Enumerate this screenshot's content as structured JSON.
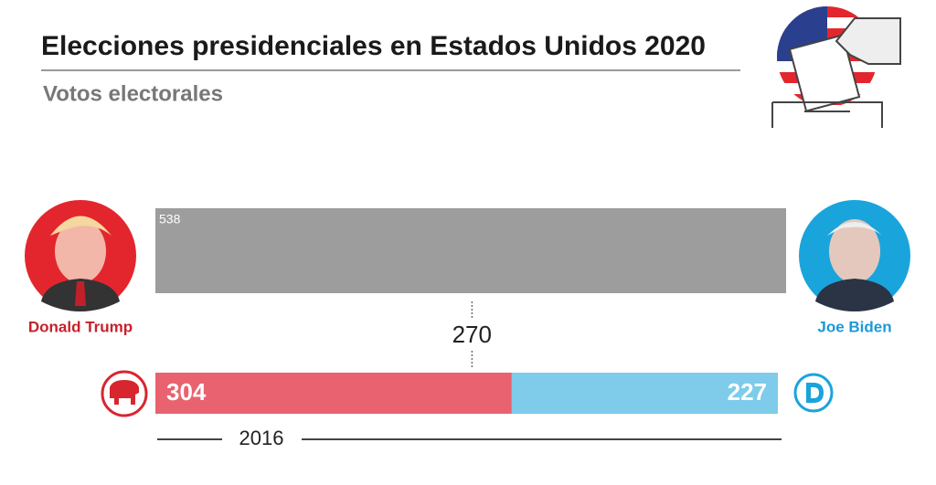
{
  "chart_data": {
    "type": "bar",
    "title": "Elecciones presidenciales en Estados Unidos 2020",
    "subtitle": "Votos electorales",
    "total": 538,
    "threshold": 270,
    "xlim": [
      0,
      538
    ],
    "categories": [
      "2016"
    ],
    "series": [
      {
        "name": "Donald Trump",
        "color": "#e8636f",
        "values": [
          304
        ]
      },
      {
        "name": "Joe Biden",
        "color": "#7ecbea",
        "values": [
          227
        ]
      }
    ]
  }
}
